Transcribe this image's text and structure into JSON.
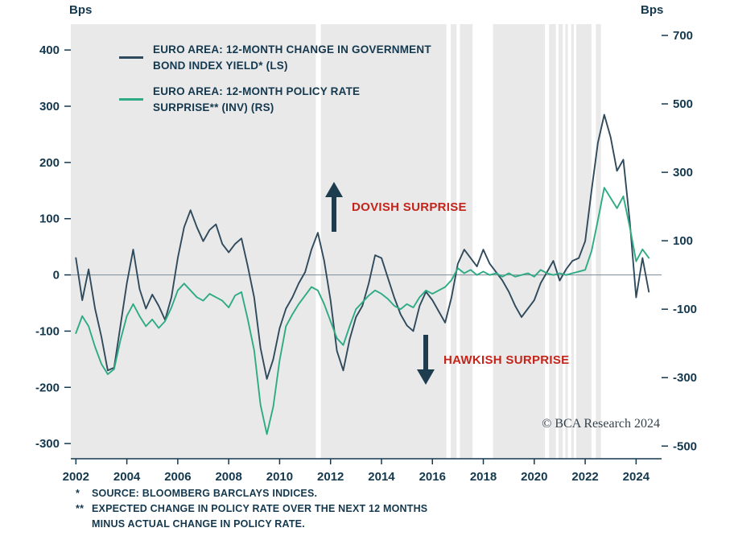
{
  "page": {
    "left_unit": "Bps",
    "right_unit": "Bps",
    "copyright": "© BCA Research 2024"
  },
  "annotations": {
    "dovish": {
      "text": "DOVISH SURPRISE",
      "color": "#c3251b"
    },
    "hawkish": {
      "text": "HAWKISH SURPRISE",
      "color": "#c3251b"
    }
  },
  "footnotes": [
    {
      "marker": "*",
      "text": "SOURCE: BLOOMBERG BARCLAYS INDICES."
    },
    {
      "marker": "**",
      "text": "EXPECTED CHANGE IN POLICY RATE OVER THE NEXT 12 MONTHS"
    },
    {
      "marker": "",
      "text": "MINUS ACTUAL CHANGE IN POLICY RATE."
    }
  ],
  "chart_data": {
    "type": "line",
    "title": "",
    "plot_bg": "#e9e9e9",
    "text_color": "#14384e",
    "x_domain": [
      2001.8,
      2025.0
    ],
    "x_ticks": [
      2002,
      2004,
      2006,
      2008,
      2010,
      2012,
      2014,
      2016,
      2018,
      2020,
      2022,
      2024
    ],
    "left_axis": {
      "unit": "Bps",
      "min": -327,
      "max": 446,
      "ticks": [
        400,
        300,
        200,
        100,
        0,
        -100,
        -200,
        -300
      ]
    },
    "right_axis": {
      "unit": "Bps",
      "min": -537,
      "max": 733,
      "ticks": [
        700,
        500,
        300,
        100,
        -100,
        -300,
        -500
      ],
      "note": "inverted series axis (INV)"
    },
    "x_start": 2002.0,
    "x_step": 0.25,
    "shaded_spans": [
      [
        2001.8,
        2011.42
      ],
      [
        2011.62,
        2016.55
      ],
      [
        2016.72,
        2016.95
      ],
      [
        2017.08,
        2017.58
      ],
      [
        2018.38,
        2020.42
      ],
      [
        2020.58,
        2020.85
      ],
      [
        2020.95,
        2021.12
      ],
      [
        2021.22,
        2021.32
      ],
      [
        2021.45,
        2021.55
      ],
      [
        2021.65,
        2022.25
      ],
      [
        2022.42,
        2022.62
      ]
    ],
    "zero_line": 0,
    "series": [
      {
        "name": "EURO AREA: 12-MONTH CHANGE IN GOVERNMENT BOND INDEX YIELD* (LS)",
        "label_lines": [
          "EURO AREA: 12-MONTH CHANGE IN GOVERNMENT",
          "BOND INDEX YIELD* (LS)"
        ],
        "axis": "left",
        "color": "#2f4a5c",
        "values": [
          30,
          -45,
          10,
          -60,
          -110,
          -170,
          -165,
          -90,
          -15,
          45,
          -25,
          -60,
          -35,
          -55,
          -80,
          -40,
          30,
          85,
          115,
          85,
          60,
          80,
          90,
          55,
          40,
          55,
          65,
          15,
          -40,
          -130,
          -185,
          -150,
          -95,
          -60,
          -40,
          -15,
          5,
          45,
          75,
          25,
          -45,
          -135,
          -170,
          -115,
          -75,
          -55,
          -15,
          35,
          30,
          -5,
          -40,
          -70,
          -90,
          -100,
          -55,
          -30,
          -45,
          -65,
          -85,
          -40,
          20,
          45,
          30,
          15,
          45,
          20,
          5,
          -10,
          -30,
          -55,
          -75,
          -60,
          -45,
          -15,
          5,
          25,
          -10,
          10,
          25,
          30,
          60,
          150,
          235,
          285,
          245,
          185,
          205,
          95,
          -40,
          30,
          -30
        ]
      },
      {
        "name": "EURO AREA: 12-MONTH POLICY RATE SURPRISE** (INV) (RS)",
        "label_lines": [
          "EURO AREA: 12-MONTH POLICY RATE",
          "SURPRISE** (INV) (RS)"
        ],
        "axis": "right",
        "color": "#2eab84",
        "values": [
          -170,
          -120,
          -150,
          -210,
          -260,
          -290,
          -275,
          -190,
          -120,
          -85,
          -120,
          -150,
          -130,
          -155,
          -135,
          -95,
          -45,
          -25,
          -45,
          -65,
          -75,
          -55,
          -65,
          -75,
          -95,
          -60,
          -50,
          -130,
          -220,
          -380,
          -465,
          -385,
          -250,
          -150,
          -115,
          -85,
          -60,
          -35,
          -45,
          -85,
          -135,
          -185,
          -205,
          -150,
          -100,
          -80,
          -60,
          -45,
          -55,
          -70,
          -90,
          -100,
          -85,
          -95,
          -65,
          -45,
          -55,
          -45,
          -35,
          -15,
          20,
          5,
          15,
          0,
          10,
          0,
          5,
          -5,
          5,
          -5,
          0,
          5,
          -5,
          15,
          5,
          0,
          5,
          0,
          5,
          10,
          15,
          70,
          160,
          255,
          225,
          195,
          230,
          140,
          40,
          75,
          50
        ]
      }
    ]
  }
}
